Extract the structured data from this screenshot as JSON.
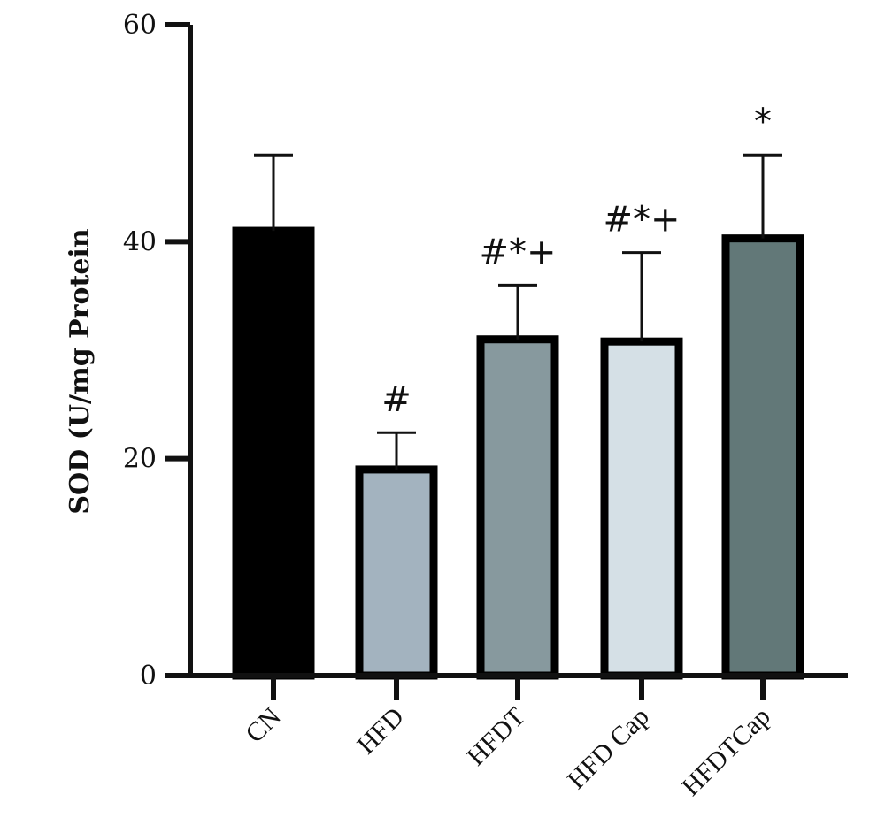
{
  "chart_data": {
    "type": "bar",
    "title": "",
    "xlabel": "",
    "ylabel": "SOD (U/mg Protein",
    "ylim": [
      0,
      60
    ],
    "yticks": [
      "0",
      "20",
      "40",
      "60"
    ],
    "categories": [
      "CN",
      "HFD",
      "HFDT",
      "HFD Cap",
      "HFDTCap"
    ],
    "values": [
      41,
      19,
      31,
      30.8,
      40.3
    ],
    "errors": [
      7,
      3.4,
      5,
      8.2,
      7.7
    ],
    "annotations": [
      "",
      "#",
      "#*+",
      "#*+",
      "*"
    ],
    "colors": [
      "#000000",
      "#a3b3bf",
      "#87999e",
      "#d5e0e6",
      "#627878"
    ],
    "grid": false
  }
}
